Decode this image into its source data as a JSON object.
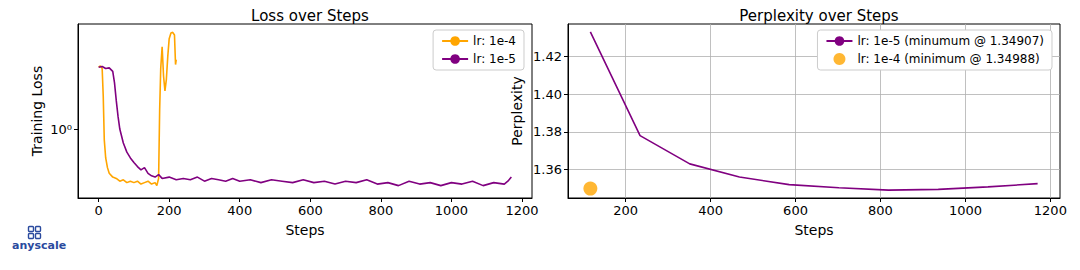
{
  "chart_data": [
    {
      "type": "line",
      "title": "Loss over Steps",
      "x_label": "Steps",
      "y_label": "Training Loss",
      "log": "y",
      "grid": false,
      "legend": "upper right",
      "xlim": [
        -58.5,
        1228.5
      ],
      "xticks": [
        0,
        200,
        400,
        600,
        800,
        1000,
        1200
      ],
      "ylim": [
        0.24,
        8.8
      ],
      "yticks": [
        {
          "value": 1,
          "label": "10⁰"
        }
      ],
      "annotations": [
        "anyscale"
      ],
      "series": [
        {
          "name": "lr: 1e-4",
          "color": "#ffa500",
          "x": [
            0,
            5,
            10,
            13,
            16,
            20,
            25,
            30,
            40,
            50,
            60,
            70,
            80,
            90,
            100,
            110,
            120,
            130,
            140,
            150,
            160,
            165,
            170,
            173,
            176,
            180,
            184,
            188,
            192,
            196,
            200,
            205,
            210,
            215,
            218,
            220
          ],
          "values": [
            3.6,
            3.7,
            3.5,
            2.0,
            0.8,
            0.55,
            0.45,
            0.4,
            0.37,
            0.36,
            0.34,
            0.35,
            0.33,
            0.34,
            0.33,
            0.34,
            0.32,
            0.33,
            0.34,
            0.32,
            0.33,
            0.31,
            0.36,
            1.5,
            3.5,
            5.5,
            3.0,
            2.2,
            2.8,
            4.5,
            6.5,
            7.3,
            7.4,
            7.0,
            3.8,
            4.2
          ]
        },
        {
          "name": "lr: 1e-5",
          "color": "#800080",
          "x": [
            0,
            10,
            20,
            30,
            40,
            45,
            50,
            55,
            60,
            70,
            80,
            90,
            100,
            110,
            120,
            130,
            140,
            150,
            160,
            170,
            180,
            200,
            220,
            240,
            260,
            280,
            300,
            320,
            340,
            360,
            380,
            400,
            430,
            460,
            490,
            520,
            550,
            580,
            610,
            640,
            670,
            700,
            730,
            760,
            790,
            820,
            850,
            880,
            910,
            940,
            970,
            1000,
            1030,
            1060,
            1090,
            1120,
            1150,
            1160,
            1170
          ],
          "values": [
            3.6,
            3.65,
            3.5,
            3.55,
            3.3,
            2.6,
            1.8,
            1.3,
            1.0,
            0.75,
            0.62,
            0.55,
            0.5,
            0.46,
            0.43,
            0.45,
            0.4,
            0.38,
            0.37,
            0.39,
            0.36,
            0.37,
            0.35,
            0.36,
            0.35,
            0.37,
            0.34,
            0.36,
            0.35,
            0.34,
            0.36,
            0.34,
            0.35,
            0.33,
            0.35,
            0.34,
            0.33,
            0.35,
            0.33,
            0.34,
            0.32,
            0.34,
            0.33,
            0.35,
            0.32,
            0.33,
            0.31,
            0.34,
            0.32,
            0.33,
            0.31,
            0.33,
            0.32,
            0.34,
            0.31,
            0.33,
            0.32,
            0.34,
            0.37
          ]
        }
      ]
    },
    {
      "type": "line",
      "title": "Perplexity over Steps",
      "x_label": "Steps",
      "y_label": "Perplexity",
      "grid": true,
      "legend": "upper right",
      "xlim": [
        64.35,
        1222.65
      ],
      "xticks": [
        200,
        400,
        600,
        800,
        1000,
        1200
      ],
      "ylim": [
        1.3449,
        1.4372
      ],
      "yticks": [
        1.36,
        1.38,
        {
          "value": 1.4,
          "label": "1.40"
        },
        1.42
      ],
      "series": [
        {
          "name": "lr: 1e-5 (minumum @ 1.34907)",
          "color": "#800080",
          "type": "line",
          "x": [
            117,
            234,
            351,
            468,
            585,
            702,
            819,
            936,
            1053,
            1170
          ],
          "values": [
            1.433,
            1.378,
            1.363,
            1.356,
            1.352,
            1.3503,
            1.34907,
            1.3495,
            1.3508,
            1.3525
          ]
        },
        {
          "name": "lr: 1e-4 (minimum @ 1.34988)",
          "color": "#ffa500",
          "type": "scatter",
          "marker": "circle",
          "x": [
            117
          ],
          "values": [
            1.34988
          ]
        }
      ]
    }
  ]
}
